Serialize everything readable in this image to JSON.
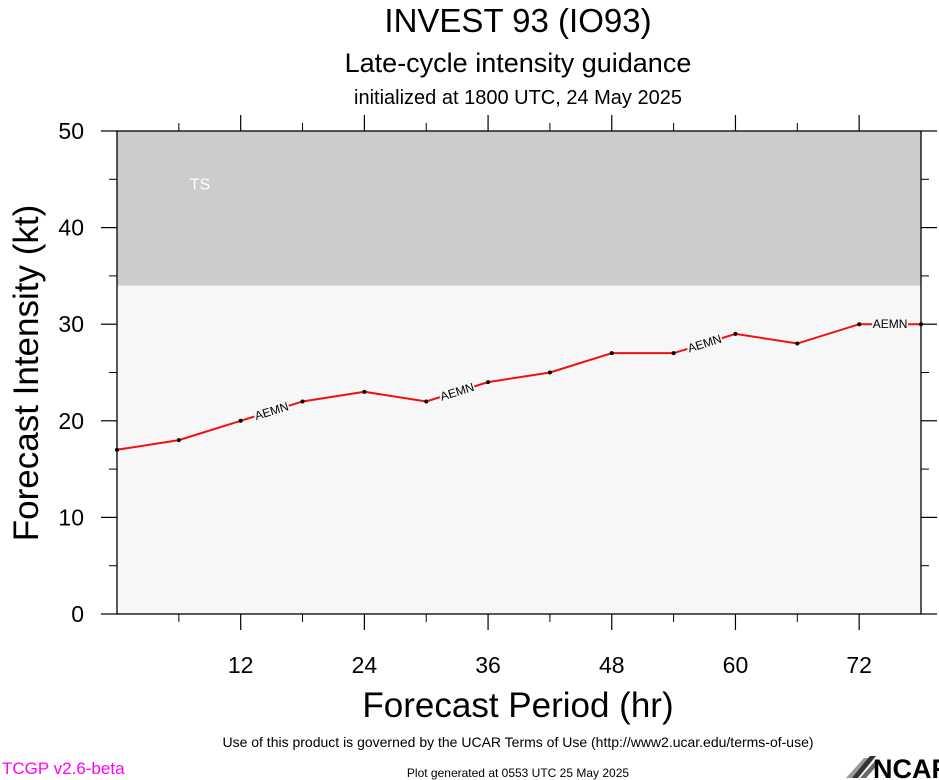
{
  "header": {
    "title": "INVEST 93 (IO93)",
    "subtitle": "Late-cycle intensity guidance",
    "initialized": "initialized at 1800 UTC, 24 May 2025"
  },
  "footer": {
    "terms": "Use of this product is governed by the UCAR Terms of Use (http://www2.ucar.edu/terms-of-use)",
    "generated": "Plot generated at 0553 UTC   25 May 2025",
    "version": "TCGP v2.6-beta",
    "logo_text": "NCAR"
  },
  "chart_data": {
    "type": "line",
    "xlabel": "Forecast Period (hr)",
    "ylabel": "Forecast Intensity (kt)",
    "xlim": [
      0,
      78
    ],
    "ylim": [
      0,
      50
    ],
    "xticks": [
      12,
      24,
      36,
      48,
      60,
      72
    ],
    "yticks": [
      0,
      10,
      20,
      30,
      40,
      50
    ],
    "bands": [
      {
        "label": "TS",
        "ymin": 34,
        "ymax": 50,
        "color": "#cccccc"
      }
    ],
    "plot_background": "#f7f7f7",
    "series": [
      {
        "name": "AEMN",
        "color": "#ee1111",
        "x": [
          0,
          6,
          12,
          18,
          24,
          30,
          36,
          42,
          48,
          54,
          60,
          66,
          72,
          78
        ],
        "y": [
          17,
          18,
          20,
          22,
          23,
          22,
          24,
          25,
          27,
          27,
          29,
          28,
          30,
          30
        ]
      }
    ]
  }
}
